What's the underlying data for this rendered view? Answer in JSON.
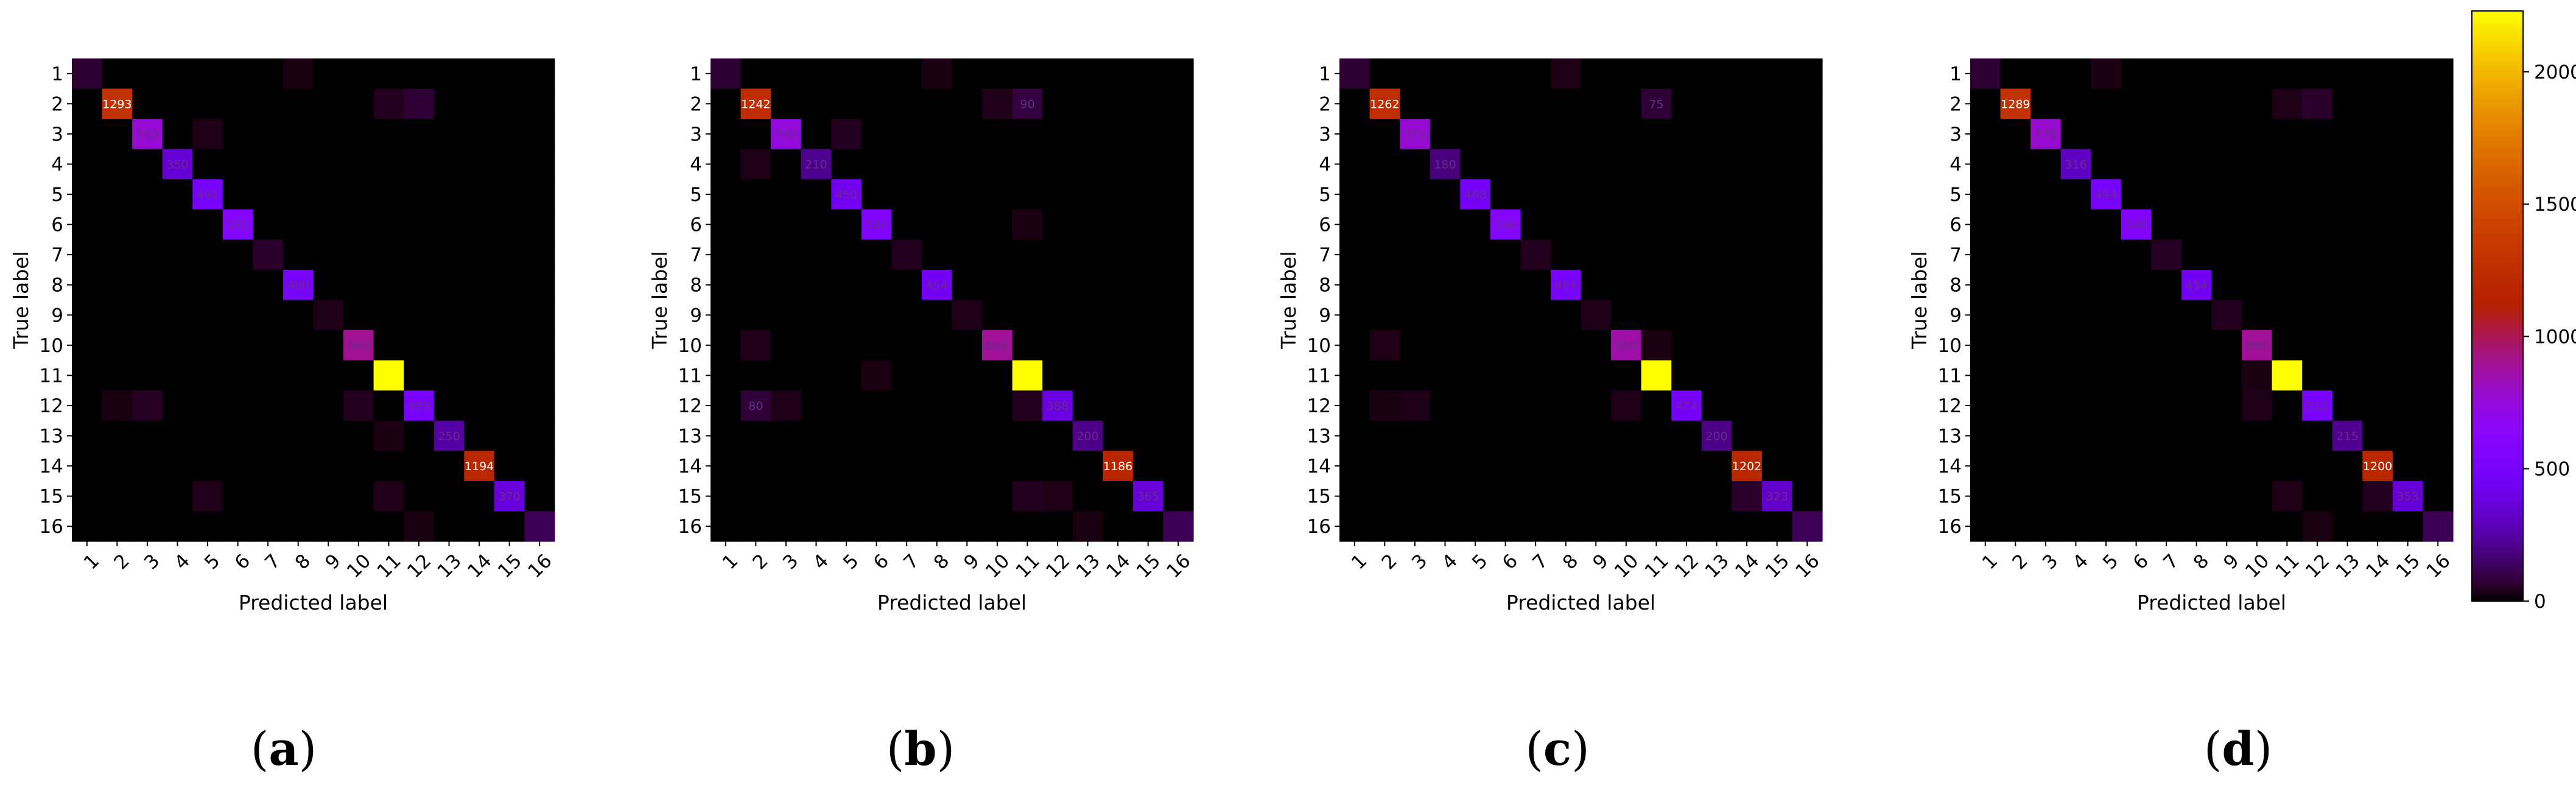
{
  "captions": [
    "a",
    "b",
    "c",
    "d"
  ],
  "colorbar": {
    "ticks": [
      0,
      500,
      1000,
      1500,
      2000
    ],
    "vmax": 2230,
    "colormap": "gnuplot"
  },
  "chart_data": [
    {
      "type": "heatmap",
      "panel": "a",
      "xlabel": "Predicted label",
      "ylabel": "True label",
      "labels": [
        "1",
        "2",
        "3",
        "4",
        "5",
        "6",
        "7",
        "8",
        "9",
        "10",
        "11",
        "12",
        "13",
        "14",
        "15",
        "16"
      ],
      "values": [
        [
          70,
          0,
          0,
          0,
          0,
          0,
          0,
          25,
          0,
          0,
          0,
          0,
          0,
          0,
          0,
          0
        ],
        [
          0,
          1293,
          0,
          0,
          0,
          0,
          0,
          0,
          0,
          0,
          40,
          75,
          0,
          0,
          0,
          0
        ],
        [
          0,
          0,
          763,
          0,
          30,
          0,
          0,
          0,
          0,
          0,
          0,
          0,
          0,
          0,
          0,
          0
        ],
        [
          0,
          0,
          0,
          350,
          0,
          0,
          0,
          0,
          0,
          0,
          0,
          0,
          0,
          0,
          0,
          0
        ],
        [
          0,
          0,
          0,
          0,
          492,
          0,
          0,
          0,
          0,
          0,
          0,
          0,
          0,
          0,
          0,
          0
        ],
        [
          0,
          0,
          0,
          0,
          0,
          595,
          0,
          0,
          0,
          0,
          0,
          0,
          0,
          0,
          0,
          0
        ],
        [
          0,
          0,
          0,
          0,
          0,
          0,
          60,
          0,
          0,
          0,
          0,
          0,
          0,
          0,
          0,
          0
        ],
        [
          0,
          0,
          0,
          0,
          0,
          0,
          0,
          490,
          0,
          0,
          0,
          0,
          0,
          0,
          0,
          0
        ],
        [
          0,
          0,
          0,
          0,
          0,
          0,
          0,
          0,
          30,
          0,
          0,
          0,
          0,
          0,
          0,
          0
        ],
        [
          0,
          0,
          0,
          0,
          0,
          0,
          0,
          0,
          0,
          900,
          0,
          0,
          0,
          0,
          0,
          0
        ],
        [
          0,
          0,
          0,
          0,
          0,
          0,
          0,
          0,
          0,
          0,
          2230,
          0,
          0,
          0,
          0,
          0
        ],
        [
          0,
          20,
          50,
          0,
          0,
          0,
          0,
          0,
          0,
          40,
          0,
          499,
          0,
          0,
          0,
          0
        ],
        [
          0,
          0,
          0,
          0,
          0,
          0,
          0,
          0,
          0,
          0,
          25,
          0,
          250,
          0,
          0,
          0
        ],
        [
          0,
          0,
          0,
          0,
          0,
          0,
          0,
          0,
          0,
          0,
          0,
          0,
          0,
          1194,
          0,
          0
        ],
        [
          0,
          0,
          0,
          0,
          35,
          0,
          0,
          0,
          0,
          0,
          35,
          0,
          0,
          0,
          370,
          0
        ],
        [
          0,
          0,
          0,
          0,
          0,
          0,
          0,
          0,
          0,
          0,
          0,
          20,
          0,
          0,
          0,
          120
        ]
      ],
      "value_labels": {
        "2,2": "1293",
        "3,3": "763",
        "4,4": "350",
        "5,5": "492",
        "6,6": "595",
        "8,8": "490",
        "10,10": "900",
        "12,12": "499",
        "13,13": "250",
        "14,14": "1194",
        "15,15": "370"
      }
    },
    {
      "type": "heatmap",
      "panel": "b",
      "xlabel": "Predicted label",
      "ylabel": "True label",
      "labels": [
        "1",
        "2",
        "3",
        "4",
        "5",
        "6",
        "7",
        "8",
        "9",
        "10",
        "11",
        "12",
        "13",
        "14",
        "15",
        "16"
      ],
      "values": [
        [
          70,
          0,
          0,
          0,
          0,
          0,
          0,
          25,
          0,
          0,
          0,
          0,
          0,
          0,
          0,
          0
        ],
        [
          0,
          1242,
          0,
          0,
          0,
          0,
          0,
          0,
          0,
          35,
          90,
          0,
          0,
          0,
          0,
          0
        ],
        [
          0,
          0,
          745,
          0,
          40,
          0,
          0,
          0,
          0,
          0,
          0,
          0,
          0,
          0,
          0,
          0
        ],
        [
          0,
          30,
          0,
          210,
          0,
          0,
          0,
          0,
          0,
          0,
          0,
          0,
          0,
          0,
          0,
          0
        ],
        [
          0,
          0,
          0,
          0,
          450,
          0,
          0,
          0,
          0,
          0,
          0,
          0,
          0,
          0,
          0,
          0
        ],
        [
          0,
          0,
          0,
          0,
          0,
          564,
          0,
          0,
          0,
          0,
          25,
          0,
          0,
          0,
          0,
          0
        ],
        [
          0,
          0,
          0,
          0,
          0,
          0,
          40,
          0,
          0,
          0,
          0,
          0,
          0,
          0,
          0,
          0
        ],
        [
          0,
          0,
          0,
          0,
          0,
          0,
          0,
          454,
          0,
          0,
          0,
          0,
          0,
          0,
          0,
          0
        ],
        [
          0,
          0,
          0,
          0,
          0,
          0,
          0,
          0,
          30,
          0,
          0,
          0,
          0,
          0,
          0,
          0
        ],
        [
          0,
          35,
          0,
          0,
          0,
          0,
          0,
          0,
          0,
          888,
          0,
          0,
          0,
          0,
          0,
          0
        ],
        [
          0,
          0,
          0,
          0,
          0,
          25,
          0,
          0,
          0,
          0,
          2230,
          0,
          0,
          0,
          0,
          0
        ],
        [
          0,
          80,
          30,
          0,
          0,
          0,
          0,
          0,
          0,
          0,
          40,
          388,
          0,
          0,
          0,
          0
        ],
        [
          0,
          0,
          0,
          0,
          0,
          0,
          0,
          0,
          0,
          0,
          0,
          0,
          200,
          0,
          0,
          0
        ],
        [
          0,
          0,
          0,
          0,
          0,
          0,
          0,
          0,
          0,
          0,
          0,
          0,
          0,
          1186,
          0,
          0
        ],
        [
          0,
          0,
          0,
          0,
          0,
          0,
          0,
          0,
          0,
          0,
          40,
          30,
          0,
          0,
          365,
          0
        ],
        [
          0,
          0,
          0,
          0,
          0,
          0,
          0,
          0,
          0,
          0,
          0,
          0,
          20,
          0,
          0,
          120
        ]
      ],
      "value_labels": {
        "2,2": "1242",
        "2,11": "90",
        "3,3": "745",
        "4,4": "210",
        "5,5": "450",
        "6,6": "564",
        "8,8": "454",
        "10,10": "888",
        "12,2": "80",
        "12,12": "388",
        "13,13": "200",
        "14,14": "1186",
        "15,15": "365"
      }
    },
    {
      "type": "heatmap",
      "panel": "c",
      "xlabel": "Predicted label",
      "ylabel": "True label",
      "labels": [
        "1",
        "2",
        "3",
        "4",
        "5",
        "6",
        "7",
        "8",
        "9",
        "10",
        "11",
        "12",
        "13",
        "14",
        "15",
        "16"
      ],
      "values": [
        [
          70,
          0,
          0,
          0,
          0,
          0,
          0,
          30,
          0,
          0,
          0,
          0,
          0,
          0,
          0,
          0
        ],
        [
          0,
          1262,
          0,
          0,
          0,
          0,
          0,
          0,
          0,
          0,
          75,
          0,
          0,
          0,
          0,
          0
        ],
        [
          0,
          0,
          773,
          0,
          0,
          0,
          0,
          0,
          0,
          0,
          0,
          0,
          0,
          0,
          0,
          0
        ],
        [
          0,
          0,
          0,
          180,
          0,
          0,
          0,
          0,
          0,
          0,
          0,
          0,
          0,
          0,
          0,
          0
        ],
        [
          0,
          0,
          0,
          0,
          468,
          0,
          0,
          0,
          0,
          0,
          0,
          0,
          0,
          0,
          0,
          0
        ],
        [
          0,
          0,
          0,
          0,
          0,
          590,
          0,
          0,
          0,
          0,
          0,
          0,
          0,
          0,
          0,
          0
        ],
        [
          0,
          0,
          0,
          0,
          0,
          0,
          40,
          0,
          0,
          0,
          0,
          0,
          0,
          0,
          0,
          0
        ],
        [
          0,
          0,
          0,
          0,
          0,
          0,
          0,
          484,
          0,
          0,
          0,
          0,
          0,
          0,
          0,
          0
        ],
        [
          0,
          0,
          0,
          0,
          0,
          0,
          0,
          0,
          30,
          0,
          0,
          0,
          0,
          0,
          0,
          0
        ],
        [
          0,
          30,
          0,
          0,
          0,
          0,
          0,
          0,
          0,
          859,
          25,
          0,
          0,
          0,
          0,
          0
        ],
        [
          0,
          0,
          0,
          0,
          0,
          0,
          0,
          0,
          0,
          0,
          2230,
          0,
          0,
          0,
          0,
          0
        ],
        [
          0,
          25,
          30,
          0,
          0,
          0,
          0,
          0,
          0,
          30,
          0,
          474,
          0,
          0,
          0,
          0
        ],
        [
          0,
          0,
          0,
          0,
          0,
          0,
          0,
          0,
          0,
          0,
          0,
          0,
          200,
          0,
          0,
          0
        ],
        [
          0,
          0,
          0,
          0,
          0,
          0,
          0,
          0,
          0,
          0,
          0,
          0,
          0,
          1202,
          0,
          0
        ],
        [
          0,
          0,
          0,
          0,
          0,
          0,
          0,
          0,
          0,
          0,
          0,
          0,
          0,
          60,
          323,
          0
        ],
        [
          0,
          0,
          0,
          0,
          0,
          0,
          0,
          0,
          0,
          0,
          0,
          0,
          0,
          0,
          0,
          120
        ]
      ],
      "value_labels": {
        "2,2": "1262",
        "2,11": "75",
        "3,3": "773",
        "4,4": "180",
        "5,5": "468",
        "6,6": "590",
        "8,8": "484",
        "10,10": "859",
        "12,12": "474",
        "13,13": "200",
        "14,14": "1202",
        "15,15": "323"
      }
    },
    {
      "type": "heatmap",
      "panel": "d",
      "xlabel": "Predicted label",
      "ylabel": "True label",
      "labels": [
        "1",
        "2",
        "3",
        "4",
        "5",
        "6",
        "7",
        "8",
        "9",
        "10",
        "11",
        "12",
        "13",
        "14",
        "15",
        "16"
      ],
      "values": [
        [
          70,
          0,
          0,
          0,
          25,
          0,
          0,
          0,
          0,
          0,
          0,
          0,
          0,
          0,
          0,
          0
        ],
        [
          0,
          1289,
          0,
          0,
          0,
          0,
          0,
          0,
          0,
          0,
          30,
          60,
          0,
          0,
          0,
          0
        ],
        [
          0,
          0,
          778,
          0,
          0,
          0,
          0,
          0,
          0,
          0,
          0,
          0,
          0,
          0,
          0,
          0
        ],
        [
          0,
          0,
          0,
          316,
          0,
          0,
          0,
          0,
          0,
          0,
          0,
          0,
          0,
          0,
          0,
          0
        ],
        [
          0,
          0,
          0,
          0,
          494,
          0,
          0,
          0,
          0,
          0,
          0,
          0,
          0,
          0,
          0,
          0
        ],
        [
          0,
          0,
          0,
          0,
          0,
          580,
          0,
          0,
          0,
          0,
          0,
          0,
          0,
          0,
          0,
          0
        ],
        [
          0,
          0,
          0,
          0,
          0,
          0,
          50,
          0,
          0,
          0,
          0,
          0,
          0,
          0,
          0,
          0
        ],
        [
          0,
          0,
          0,
          0,
          0,
          0,
          0,
          454,
          0,
          0,
          0,
          0,
          0,
          0,
          0,
          0
        ],
        [
          0,
          0,
          0,
          0,
          0,
          0,
          0,
          0,
          40,
          0,
          0,
          0,
          0,
          0,
          0,
          0
        ],
        [
          0,
          0,
          0,
          0,
          0,
          0,
          0,
          0,
          0,
          890,
          0,
          0,
          0,
          0,
          0,
          0
        ],
        [
          0,
          0,
          0,
          0,
          0,
          0,
          0,
          0,
          0,
          25,
          2230,
          0,
          0,
          0,
          0,
          0
        ],
        [
          0,
          0,
          0,
          0,
          0,
          0,
          0,
          0,
          0,
          30,
          0,
          512,
          0,
          0,
          0,
          0
        ],
        [
          0,
          0,
          0,
          0,
          0,
          0,
          0,
          0,
          0,
          0,
          0,
          0,
          215,
          0,
          0,
          0
        ],
        [
          0,
          0,
          0,
          0,
          0,
          0,
          0,
          0,
          0,
          0,
          0,
          0,
          0,
          1200,
          0,
          0
        ],
        [
          0,
          0,
          0,
          0,
          0,
          0,
          0,
          0,
          0,
          0,
          30,
          0,
          0,
          40,
          353,
          0
        ],
        [
          0,
          0,
          0,
          0,
          0,
          0,
          0,
          0,
          0,
          0,
          0,
          20,
          0,
          0,
          0,
          120
        ]
      ],
      "value_labels": {
        "2,2": "1289",
        "3,3": "778",
        "4,4": "316",
        "5,5": "494",
        "6,6": "580",
        "8,8": "454",
        "10,10": "890",
        "12,12": "512",
        "13,13": "215",
        "14,14": "1200",
        "15,15": "353"
      }
    }
  ]
}
